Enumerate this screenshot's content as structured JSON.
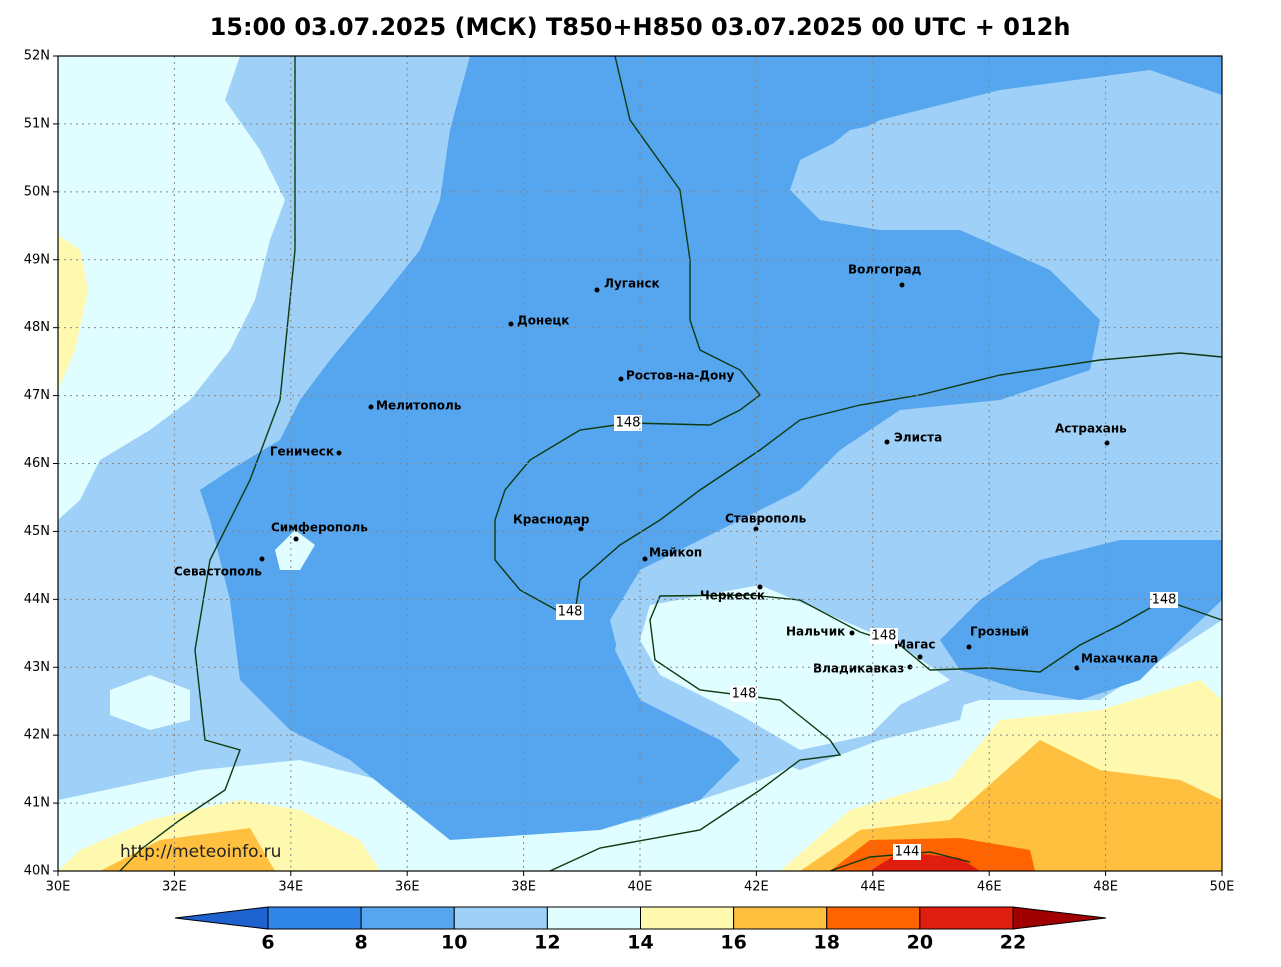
{
  "title": "15:00 03.07.2025 (МСК) T850+H850 03.07.2025 00 UTC + 012h",
  "map": {
    "lonlim": [
      30,
      50
    ],
    "latlim": [
      40,
      52
    ],
    "lonticks": [
      {
        "value": 30,
        "label": "30E"
      },
      {
        "value": 32,
        "label": "32E"
      },
      {
        "value": 34,
        "label": "34E"
      },
      {
        "value": 36,
        "label": "36E"
      },
      {
        "value": 38,
        "label": "38E"
      },
      {
        "value": 40,
        "label": "40E"
      },
      {
        "value": 42,
        "label": "42E"
      },
      {
        "value": 44,
        "label": "44E"
      },
      {
        "value": 46,
        "label": "46E"
      },
      {
        "value": 48,
        "label": "48E"
      },
      {
        "value": 50,
        "label": "50E"
      }
    ],
    "latticks": [
      {
        "value": 52,
        "label": "52N"
      },
      {
        "value": 51,
        "label": "51N"
      },
      {
        "value": 50,
        "label": "50N"
      },
      {
        "value": 49,
        "label": "49N"
      },
      {
        "value": 48,
        "label": "48N"
      },
      {
        "value": 47,
        "label": "47N"
      },
      {
        "value": 46,
        "label": "46N"
      },
      {
        "value": 45,
        "label": "45N"
      },
      {
        "value": 44,
        "label": "44N"
      },
      {
        "value": 43,
        "label": "43N"
      },
      {
        "value": 42,
        "label": "42N"
      },
      {
        "value": 41,
        "label": "41N"
      },
      {
        "value": 40,
        "label": "40N"
      }
    ],
    "grid": true,
    "cities": [
      "Луганск",
      "Донецк",
      "Ростов-на-Дону",
      "Мелитополь",
      "Геническ",
      "Симферополь",
      "Севастополь",
      "Краснодар",
      "Майкоп",
      "Ставрополь",
      "Черкесск",
      "Нальчик",
      "Магас",
      "Владикавказ",
      "Грозный",
      "Махачкала",
      "Элиста",
      "Астрахань",
      "Волгоград"
    ],
    "contour_labels": [
      "148",
      "148",
      "148",
      "148",
      "148",
      "144"
    ],
    "source": "http://meteoinfo.ru"
  },
  "colorbar": {
    "ticks": [
      6,
      8,
      10,
      12,
      14,
      16,
      18,
      20,
      22
    ],
    "colors": [
      "#1e62d0",
      "#2f86e8",
      "#55a5ef",
      "#9fd0f7",
      "#e0fdff",
      "#fff9b0",
      "#ffc040",
      "#ff6400",
      "#e01e10",
      "#a00000"
    ]
  }
}
